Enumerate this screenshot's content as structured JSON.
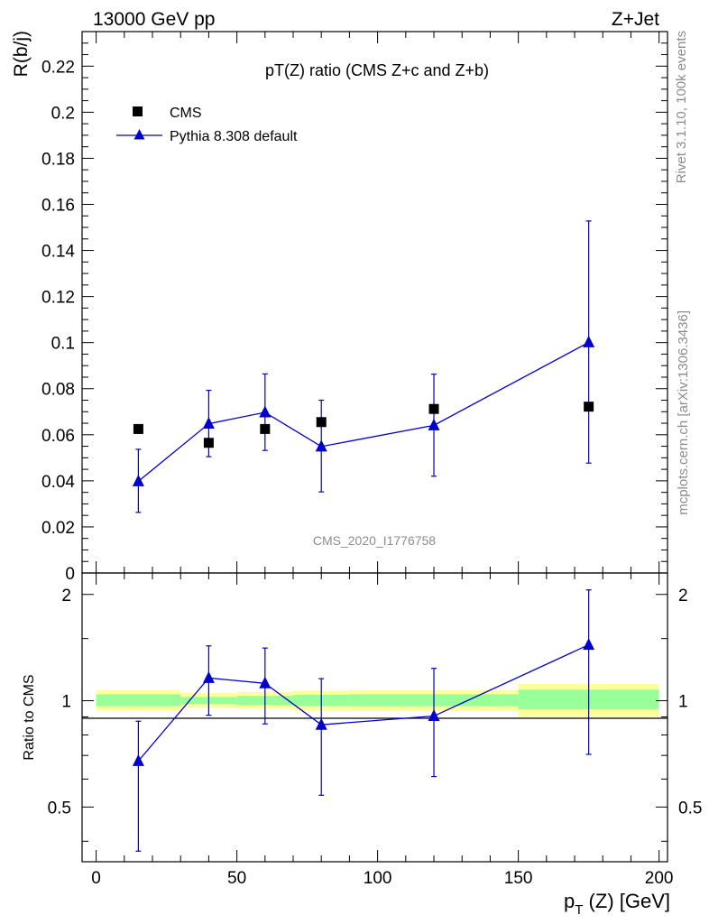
{
  "header": {
    "energy_label": "13000 GeV pp",
    "process_label": "Z+Jet"
  },
  "side_text": {
    "rivet": "Rivet 3.1.10,  100k events",
    "mcplots": "mcplots.cern.ch [arXiv:1306.3436]"
  },
  "watermark": "CMS_2020_I1776758",
  "colors": {
    "mc": "#0000cc",
    "data": "#000000",
    "band_outer": "#ffff99",
    "band_inner": "#99ff99"
  },
  "chart_data": [
    {
      "type": "scatter",
      "title": "pT(Z) ratio (CMS  Z+c and Z+b)",
      "ylabel": "R(b/j)",
      "xlim": [
        -5,
        203
      ],
      "ylim": [
        0,
        0.235
      ],
      "yticks": [
        0,
        0.02,
        0.04,
        0.06,
        0.08,
        0.1,
        0.12,
        0.14,
        0.16,
        0.18,
        0.2,
        0.22
      ],
      "ytick_labels": [
        "0",
        "0.02",
        "0.04",
        "0.06",
        "0.08",
        "0.1",
        "0.12",
        "0.14",
        "0.16",
        "0.18",
        "0.2",
        "0.22"
      ],
      "legend_position": "top-left",
      "series": [
        {
          "name": "CMS",
          "marker": "square",
          "x": [
            15,
            40,
            60,
            80,
            120,
            175
          ],
          "y": [
            0.0625,
            0.0565,
            0.0625,
            0.0655,
            0.0712,
            0.0722
          ]
        },
        {
          "name": "Pythia 8.308 default",
          "marker": "triangle",
          "x": [
            15,
            40,
            60,
            80,
            120,
            175
          ],
          "y": [
            0.0398,
            0.0648,
            0.0697,
            0.0549,
            0.0641,
            0.1001
          ],
          "yerr_low": [
            0.0135,
            0.0143,
            0.0165,
            0.0197,
            0.0221,
            0.0524
          ],
          "yerr_high": [
            0.0139,
            0.0145,
            0.0167,
            0.0201,
            0.0222,
            0.0527
          ]
        }
      ]
    },
    {
      "type": "scatter",
      "ylabel": "Ratio to CMS",
      "xlabel": "p_T (Z) [GeV]",
      "xlim": [
        -5,
        203
      ],
      "ylim": [
        0.35,
        2.3
      ],
      "yscale": "log",
      "yticks": [
        0.5,
        1,
        2
      ],
      "ytick_labels": [
        "0.5",
        "1",
        "2"
      ],
      "xticks": [
        0,
        50,
        100,
        150,
        200
      ],
      "xtick_labels": [
        "0",
        "50",
        "100",
        "150",
        "200"
      ],
      "bands": [
        {
          "x0": 0,
          "x1": 30,
          "outer": [
            0.937,
            1.072
          ],
          "inner": [
            0.965,
            1.043
          ]
        },
        {
          "x0": 30,
          "x1": 50,
          "outer": [
            0.955,
            1.051
          ],
          "inner": [
            0.978,
            1.025
          ]
        },
        {
          "x0": 50,
          "x1": 70,
          "outer": [
            0.95,
            1.058
          ],
          "inner": [
            0.972,
            1.032
          ]
        },
        {
          "x0": 70,
          "x1": 90,
          "outer": [
            0.938,
            1.068
          ],
          "inner": [
            0.966,
            1.04
          ]
        },
        {
          "x0": 90,
          "x1": 150,
          "outer": [
            0.935,
            1.072
          ],
          "inner": [
            0.965,
            1.043
          ]
        },
        {
          "x0": 150,
          "x1": 200,
          "outer": [
            0.9,
            1.117
          ],
          "inner": [
            0.945,
            1.075
          ]
        }
      ],
      "series": [
        {
          "name": "Pythia 8.308 default",
          "marker": "triangle",
          "x": [
            15,
            40,
            60,
            80,
            120,
            175
          ],
          "y": [
            0.675,
            1.16,
            1.12,
            0.855,
            0.905,
            1.44
          ],
          "yerr_low": [
            0.3,
            0.25,
            0.26,
            0.315,
            0.295,
            0.735
          ],
          "yerr_high": [
            0.2,
            0.27,
            0.29,
            0.3,
            0.33,
            0.62
          ]
        }
      ]
    }
  ]
}
